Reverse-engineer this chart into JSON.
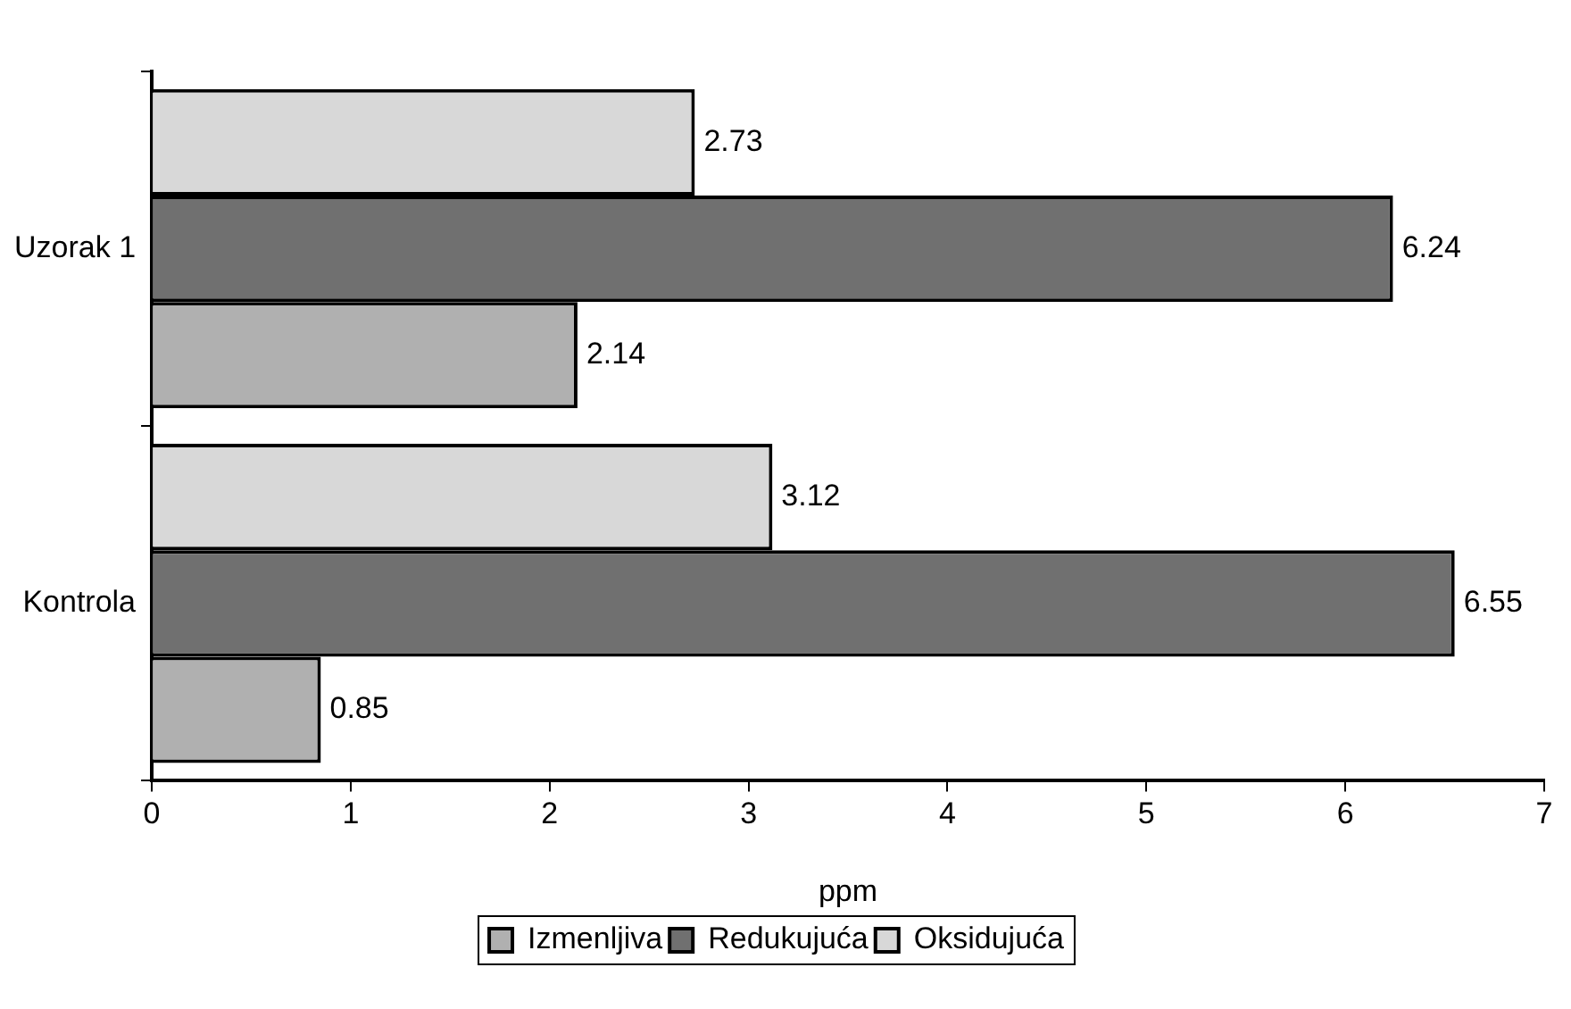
{
  "chart_data": {
    "type": "bar",
    "orientation": "horizontal",
    "categories": [
      "Uzorak 1",
      "Kontrola"
    ],
    "series": [
      {
        "name": "Izmenljiva",
        "color": "#b0b0b0",
        "values": [
          2.14,
          0.85
        ]
      },
      {
        "name": "Redukujuća",
        "color": "#707070",
        "values": [
          6.24,
          6.55
        ]
      },
      {
        "name": "Oksidujuća",
        "color": "#d8d8d8",
        "values": [
          2.73,
          3.12
        ]
      }
    ],
    "xlabel": "ppm",
    "xlim": [
      0,
      7
    ],
    "xticks": [
      0,
      1,
      2,
      3,
      4,
      5,
      6,
      7
    ],
    "grid": false,
    "legend": "bottom",
    "data_labels": true
  }
}
